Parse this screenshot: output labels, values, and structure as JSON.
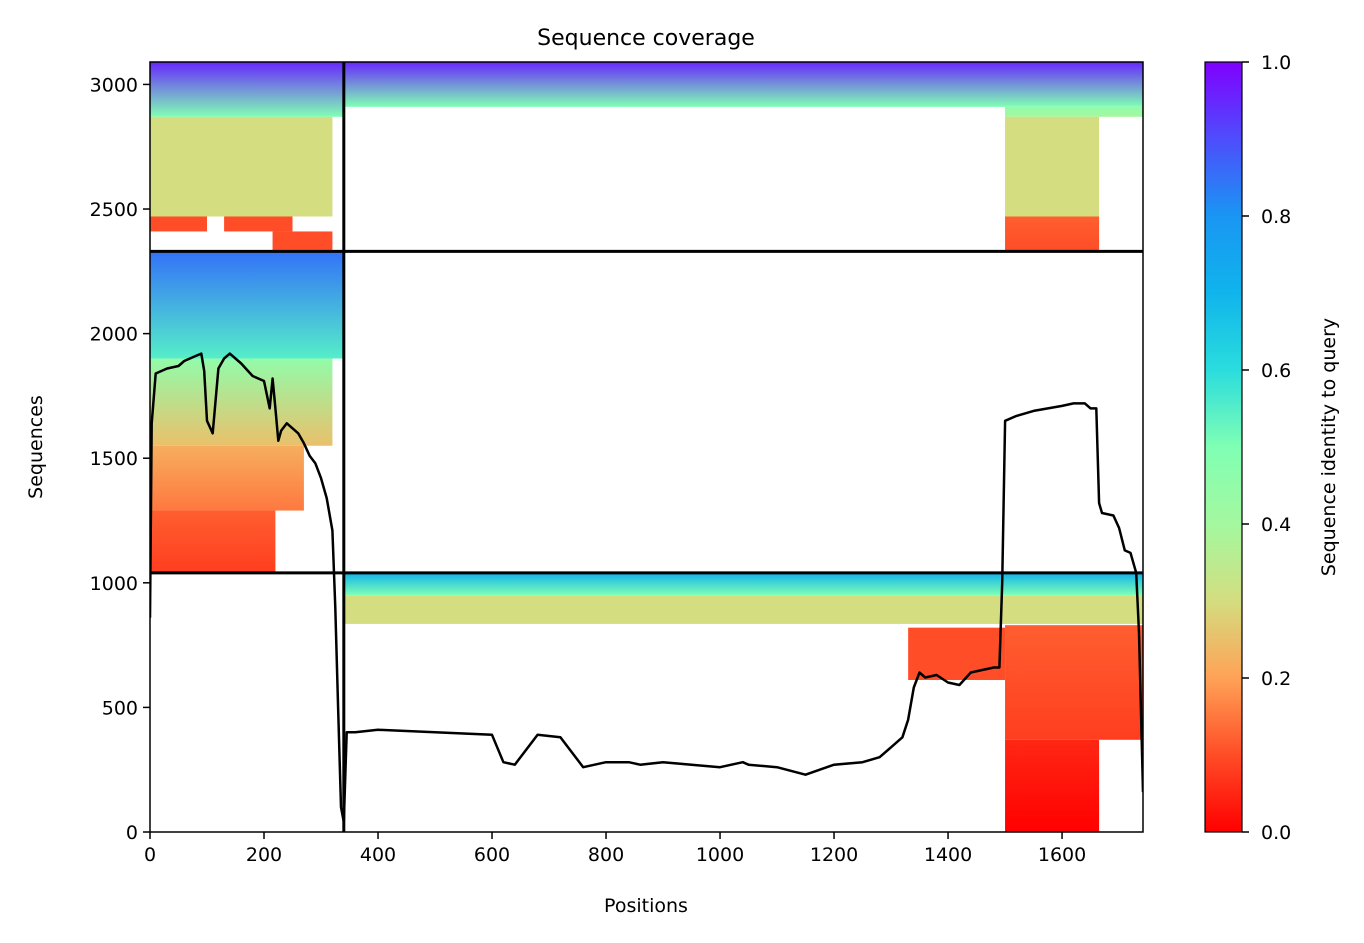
{
  "chart_data": {
    "type": "heatmap",
    "title": "Sequence coverage",
    "xlabel": "Positions",
    "ylabel": "Sequences",
    "xlim": [
      0,
      1742
    ],
    "ylim": [
      0,
      3090
    ],
    "xticks": [
      0,
      200,
      400,
      600,
      800,
      1000,
      1200,
      1400,
      1600
    ],
    "yticks": [
      0,
      500,
      1000,
      1500,
      2000,
      2500,
      3000
    ],
    "colorbar": {
      "label": "Sequence identity to query",
      "colormap": "rainbow_r",
      "range": [
        0,
        1
      ],
      "ticks": [
        "0.0",
        "0.2",
        "0.4",
        "0.6",
        "0.8",
        "1.0"
      ],
      "stops": [
        {
          "value": 0.0,
          "color": "#ff0000"
        },
        {
          "value": 0.1,
          "color": "#ff4d27"
        },
        {
          "value": 0.2,
          "color": "#ffa256"
        },
        {
          "value": 0.3,
          "color": "#d4dd80"
        },
        {
          "value": 0.4,
          "color": "#a4f89f"
        },
        {
          "value": 0.5,
          "color": "#80ffb4"
        },
        {
          "value": 0.6,
          "color": "#2adddd"
        },
        {
          "value": 0.7,
          "color": "#10b4ec"
        },
        {
          "value": 0.8,
          "color": "#1996f3"
        },
        {
          "value": 0.9,
          "color": "#4e4dfc"
        },
        {
          "value": 1.0,
          "color": "#8000ff"
        }
      ]
    },
    "domain_boundaries": {
      "vertical_x": 340,
      "horizontal_y": [
        1040,
        2330
      ]
    },
    "coverage_blocks": [
      {
        "x0": 0,
        "x1": 340,
        "y0": 2870,
        "y1": 3090,
        "identity_top": 0.95,
        "identity_bottom": 0.5
      },
      {
        "x0": 0,
        "x1": 320,
        "y0": 2470,
        "y1": 2870,
        "identity_top": 0.3,
        "identity_bottom": 0.3
      },
      {
        "x0": 0,
        "x1": 100,
        "y0": 2410,
        "y1": 2470,
        "identity_top": 0.1,
        "identity_bottom": 0.1
      },
      {
        "x0": 130,
        "x1": 250,
        "y0": 2410,
        "y1": 2470,
        "identity_top": 0.1,
        "identity_bottom": 0.1
      },
      {
        "x0": 215,
        "x1": 320,
        "y0": 2335,
        "y1": 2410,
        "identity_top": 0.1,
        "identity_bottom": 0.1
      },
      {
        "x0": 340,
        "x1": 1742,
        "y0": 2910,
        "y1": 3090,
        "identity_top": 0.95,
        "identity_bottom": 0.5
      },
      {
        "x0": 1500,
        "x1": 1742,
        "y0": 2870,
        "y1": 2910,
        "identity_top": 0.45,
        "identity_bottom": 0.4
      },
      {
        "x0": 1500,
        "x1": 1665,
        "y0": 2470,
        "y1": 2870,
        "identity_top": 0.3,
        "identity_bottom": 0.3
      },
      {
        "x0": 1500,
        "x1": 1665,
        "y0": 2335,
        "y1": 2470,
        "identity_top": 0.12,
        "identity_bottom": 0.1
      },
      {
        "x0": 0,
        "x1": 340,
        "y0": 1900,
        "y1": 2330,
        "identity_top": 0.85,
        "identity_bottom": 0.55
      },
      {
        "x0": 0,
        "x1": 320,
        "y0": 1550,
        "y1": 1900,
        "identity_top": 0.45,
        "identity_bottom": 0.25
      },
      {
        "x0": 0,
        "x1": 270,
        "y0": 1290,
        "y1": 1550,
        "identity_top": 0.22,
        "identity_bottom": 0.15
      },
      {
        "x0": 0,
        "x1": 220,
        "y0": 1040,
        "y1": 1290,
        "identity_top": 0.12,
        "identity_bottom": 0.08
      },
      {
        "x0": 340,
        "x1": 1742,
        "y0": 950,
        "y1": 1040,
        "identity_top": 0.7,
        "identity_bottom": 0.5
      },
      {
        "x0": 340,
        "x1": 1742,
        "y0": 835,
        "y1": 950,
        "identity_top": 0.3,
        "identity_bottom": 0.3
      },
      {
        "x0": 1330,
        "x1": 1500,
        "y0": 610,
        "y1": 820,
        "identity_top": 0.1,
        "identity_bottom": 0.1
      },
      {
        "x0": 1500,
        "x1": 1742,
        "y0": 370,
        "y1": 830,
        "identity_top": 0.12,
        "identity_bottom": 0.08
      },
      {
        "x0": 1500,
        "x1": 1665,
        "y0": 0,
        "y1": 370,
        "identity_top": 0.05,
        "identity_bottom": 0.0
      }
    ],
    "series": [
      {
        "type": "line",
        "color": "#000000",
        "x": [
          0,
          3,
          10,
          30,
          50,
          60,
          70,
          80,
          90,
          95,
          100,
          110,
          120,
          130,
          140,
          160,
          180,
          200,
          210,
          215,
          220,
          225,
          230,
          240,
          250,
          260,
          270,
          280,
          290,
          300,
          310,
          320,
          325,
          330,
          335,
          340,
          345,
          360,
          400,
          500,
          600,
          620,
          640,
          680,
          720,
          760,
          780,
          800,
          840,
          860,
          900,
          950,
          1000,
          1040,
          1050,
          1100,
          1150,
          1200,
          1250,
          1280,
          1300,
          1320,
          1330,
          1340,
          1350,
          1360,
          1380,
          1400,
          1420,
          1440,
          1480,
          1490,
          1495,
          1500,
          1520,
          1550,
          1600,
          1620,
          1640,
          1650,
          1660,
          1665,
          1670,
          1690,
          1700,
          1710,
          1720,
          1730,
          1735,
          1742
        ],
        "y": [
          860,
          1640,
          1840,
          1860,
          1870,
          1890,
          1900,
          1910,
          1920,
          1850,
          1650,
          1600,
          1860,
          1900,
          1920,
          1880,
          1830,
          1810,
          1700,
          1820,
          1700,
          1570,
          1610,
          1640,
          1620,
          1600,
          1560,
          1510,
          1480,
          1420,
          1340,
          1210,
          900,
          500,
          100,
          40,
          400,
          400,
          410,
          400,
          390,
          280,
          270,
          390,
          380,
          260,
          270,
          280,
          280,
          270,
          280,
          270,
          260,
          280,
          270,
          260,
          230,
          270,
          280,
          300,
          340,
          380,
          450,
          580,
          640,
          620,
          630,
          600,
          590,
          640,
          660,
          660,
          1000,
          1650,
          1670,
          1690,
          1710,
          1720,
          1720,
          1700,
          1700,
          1320,
          1280,
          1270,
          1220,
          1130,
          1120,
          1040,
          800,
          160
        ]
      }
    ]
  }
}
